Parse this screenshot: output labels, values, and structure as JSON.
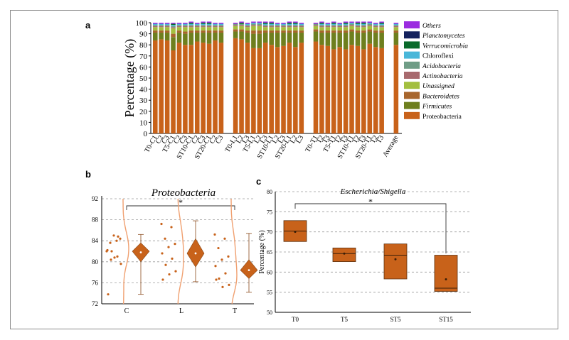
{
  "panels": {
    "a": "a",
    "b": "b",
    "c": "c"
  },
  "chart_data": [
    {
      "type": "bar",
      "stacked": true,
      "ylabel": "Percentage (%)",
      "ylim": [
        0,
        100
      ],
      "yticks": [
        0,
        10,
        20,
        30,
        40,
        50,
        60,
        70,
        80,
        90,
        100
      ],
      "categories": [
        "T0-C1",
        "C2",
        "C3",
        "T5-C1",
        "C2",
        "C3",
        "ST10-C1",
        "C2",
        "C3",
        "ST20-C1",
        "C2",
        "C3",
        "T0-L1",
        "L2",
        "L3",
        "T5-L1",
        "L2",
        "L3",
        "ST10-L1",
        "L2",
        "L3",
        "ST20-L1",
        "L2",
        "L3",
        "T0-T1",
        "T2",
        "T3",
        "T5-T1",
        "T2",
        "T3",
        "ST10-T1",
        "T2",
        "T3",
        "ST20-T1",
        "T2",
        "T3",
        "Average"
      ],
      "group_gap_after": [
        11,
        23,
        35
      ],
      "series": [
        {
          "name": "Proteobacteria",
          "color": "#c8621a",
          "values": [
            84,
            85,
            84,
            75,
            82,
            80,
            80,
            83,
            82,
            81,
            84,
            82,
            86,
            85,
            82,
            77,
            77,
            82,
            80,
            78,
            79,
            82,
            78,
            82,
            83,
            80,
            79,
            76,
            78,
            76,
            80,
            79,
            76,
            81,
            78,
            77,
            80
          ]
        },
        {
          "name": "Firmicutes",
          "color": "#6e7f1e",
          "values": [
            7,
            6,
            7,
            12,
            9,
            10,
            11,
            8,
            9,
            10,
            7,
            9,
            6,
            7,
            9,
            13,
            13,
            9,
            11,
            13,
            12,
            9,
            13,
            9,
            9,
            11,
            12,
            15,
            13,
            15,
            12,
            12,
            15,
            11,
            13,
            14,
            11
          ]
        },
        {
          "name": "Bacteroidetes",
          "color": "#a8662d",
          "values": [
            2,
            2,
            2,
            3,
            2,
            2,
            2,
            2,
            2,
            2,
            2,
            2,
            2,
            2,
            2,
            3,
            3,
            2,
            2,
            2,
            2,
            2,
            2,
            2,
            2,
            2,
            2,
            2,
            2,
            2,
            2,
            2,
            2,
            2,
            2,
            2,
            2
          ]
        },
        {
          "name": "Unassigned",
          "color": "#a3bf3f",
          "values": [
            3,
            3,
            3,
            5,
            3,
            4,
            3,
            3,
            3,
            3,
            3,
            3,
            3,
            3,
            3,
            4,
            4,
            3,
            3,
            3,
            3,
            3,
            3,
            3,
            3,
            3,
            3,
            3,
            3,
            3,
            3,
            3,
            3,
            3,
            3,
            3,
            3
          ]
        },
        {
          "name": "Actinobacteria",
          "color": "#a86a6e",
          "values": [
            1,
            1,
            1,
            1,
            1,
            1,
            1,
            1,
            1,
            1,
            1,
            1,
            1,
            1,
            1,
            1,
            1,
            1,
            1,
            1,
            1,
            1,
            1,
            1,
            1,
            1,
            1,
            1,
            1,
            1,
            1,
            1,
            1,
            1,
            1,
            1,
            1
          ]
        },
        {
          "name": "Acidobacteria",
          "color": "#6f9d86",
          "values": [
            1,
            1,
            1,
            1,
            1,
            1,
            1,
            1,
            1,
            1,
            1,
            1,
            1,
            1,
            1,
            1,
            1,
            1,
            1,
            1,
            1,
            1,
            1,
            1,
            1,
            1,
            1,
            1,
            1,
            1,
            1,
            1,
            1,
            1,
            1,
            1,
            1
          ]
        },
        {
          "name": "Chloroflexi",
          "color": "#49b7d9",
          "values": [
            1,
            1,
            1,
            1,
            1,
            1,
            1,
            1,
            1,
            1,
            1,
            1,
            0,
            0,
            1,
            1,
            1,
            1,
            1,
            1,
            1,
            1,
            1,
            1,
            0,
            1,
            1,
            1,
            1,
            1,
            1,
            1,
            1,
            1,
            1,
            1,
            1
          ]
        },
        {
          "name": "Verrucomicrobia",
          "color": "#0a6a2a",
          "values": [
            0,
            0,
            0,
            1,
            0,
            0,
            1,
            0,
            1,
            1,
            0,
            0,
            0,
            1,
            0,
            0,
            0,
            1,
            1,
            0,
            0,
            1,
            1,
            0,
            0,
            1,
            0,
            1,
            0,
            1,
            0,
            1,
            1,
            0,
            0,
            1,
            0
          ]
        },
        {
          "name": "Planctomycetes",
          "color": "#14225e",
          "values": [
            0,
            0,
            0,
            0,
            0,
            0,
            0,
            0,
            0,
            0,
            0,
            0,
            0,
            0,
            0,
            0,
            0,
            0,
            0,
            0,
            0,
            0,
            0,
            0,
            0,
            0,
            0,
            0,
            0,
            0,
            0,
            0,
            0,
            0,
            0,
            0,
            0
          ]
        },
        {
          "name": "Others",
          "color": "#9b2ce0",
          "values": [
            1,
            1,
            1,
            1,
            1,
            1,
            1,
            1,
            1,
            1,
            1,
            1,
            1,
            1,
            1,
            1,
            1,
            1,
            1,
            1,
            1,
            1,
            1,
            1,
            1,
            1,
            1,
            1,
            1,
            1,
            1,
            1,
            1,
            1,
            1,
            1,
            1
          ]
        }
      ],
      "legend_placement": "right",
      "legend_italic": [
        false,
        true,
        true,
        true,
        true,
        true,
        false,
        true,
        true,
        true
      ]
    },
    {
      "type": "scatter",
      "title": "Proteobacteria",
      "categories": [
        "C",
        "L",
        "T"
      ],
      "ylim": [
        72,
        92
      ],
      "yticks": [
        72,
        76,
        80,
        84,
        88,
        92
      ],
      "grid": true,
      "significance": "*",
      "significance_span": [
        "C",
        "T"
      ],
      "points": [
        [
          82.0,
          84.0,
          83.6,
          84.4,
          85.0,
          82.2,
          81.0,
          80.4,
          79.6,
          80.8,
          73.8,
          84.8,
          82.0
        ],
        [
          87.2,
          86.6,
          84.4,
          83.4,
          82.8,
          81.6,
          80.6,
          79.4,
          78.2,
          77.6,
          76.6
        ],
        [
          85.2,
          84.4,
          82.6,
          81.0,
          80.4,
          79.2,
          77.8,
          76.8,
          75.6,
          75.2,
          76.6
        ]
      ],
      "summary": [
        {
          "mean": 81.8,
          "median": 82.0,
          "q1": 80.0,
          "q3": 83.6,
          "min": 73.8,
          "max": 85.2
        },
        {
          "mean": 81.6,
          "median": 81.6,
          "q1": 79.0,
          "q3": 84.4,
          "min": 76.2,
          "max": 87.8
        },
        {
          "mean": 78.4,
          "median": 78.4,
          "q1": 76.8,
          "q3": 80.4,
          "min": 74.2,
          "max": 85.4
        }
      ],
      "color": "#c8621a"
    },
    {
      "type": "box",
      "title": "Escherichia/Shigella",
      "ylabel": "Percentage (%)",
      "categories": [
        "T0",
        "T5",
        "ST5",
        "ST15"
      ],
      "ylim": [
        50,
        80
      ],
      "yticks": [
        50,
        55,
        60,
        65,
        70,
        75,
        80
      ],
      "grid": true,
      "significance": "*",
      "significance_span": [
        "T0",
        "ST15"
      ],
      "boxes": [
        {
          "min": 67.5,
          "q1": 67.6,
          "median": 70.2,
          "q3": 72.8,
          "max": 72.8,
          "mean": 70.0
        },
        {
          "min": 62.5,
          "q1": 62.6,
          "median": 64.6,
          "q3": 66.0,
          "max": 66.0,
          "mean": 64.6
        },
        {
          "min": 58.2,
          "q1": 58.3,
          "median": 64.2,
          "q3": 67.0,
          "max": 67.0,
          "mean": 63.2
        },
        {
          "min": 55.0,
          "q1": 55.2,
          "median": 56.0,
          "q3": 64.2,
          "max": 64.2,
          "mean": 58.2
        }
      ],
      "color": "#c8621a"
    }
  ]
}
